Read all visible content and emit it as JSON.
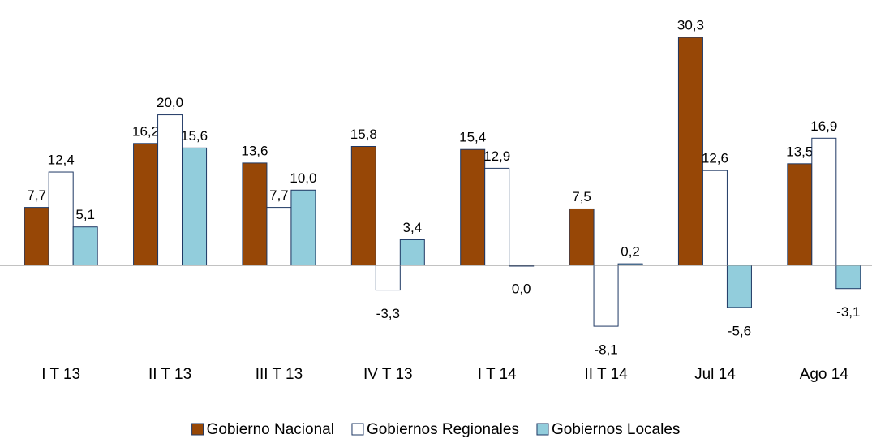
{
  "chart_data": {
    "type": "bar",
    "categories": [
      "I T 13",
      "II T 13",
      "III T 13",
      "IV T 13",
      "I T 14",
      "II T 14",
      "Jul 14",
      "Ago 14"
    ],
    "ylim": [
      -10,
      35
    ],
    "series": [
      {
        "name": "Gobierno Nacional",
        "color": "#974706",
        "values": [
          7.7,
          16.2,
          13.6,
          15.8,
          15.4,
          7.5,
          30.3,
          13.5
        ],
        "value_labels": [
          "7,7",
          "16,2",
          "13,6",
          "15,8",
          "15,4",
          "7,5",
          "30,3",
          "13,5"
        ]
      },
      {
        "name": "Gobiernos Regionales",
        "color": "#ffffff",
        "values": [
          12.4,
          20.0,
          7.7,
          -3.3,
          12.9,
          -8.1,
          12.6,
          16.9
        ],
        "value_labels": [
          "12,4",
          "20,0",
          "7,7",
          "-3,3",
          "12,9",
          "-8,1",
          "12,6",
          "16,9"
        ]
      },
      {
        "name": "Gobiernos Locales",
        "color": "#92cddc",
        "values": [
          5.1,
          15.6,
          10.0,
          3.4,
          0.0,
          0.2,
          -5.6,
          -3.1
        ],
        "value_labels": [
          "5,1",
          "15,6",
          "10,0",
          "3,4",
          "0,0",
          "0,2",
          "-5,6",
          "-3,1"
        ]
      }
    ]
  }
}
